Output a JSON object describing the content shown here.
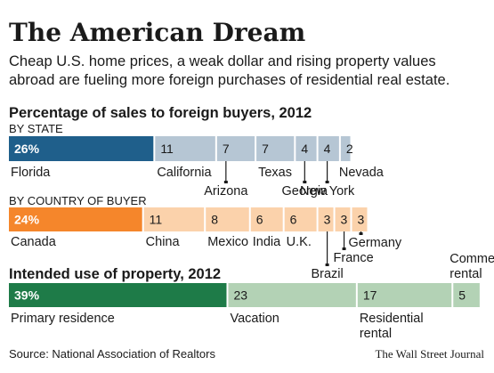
{
  "header": {
    "title": "The American Dream",
    "subtitle_line1": "Cheap U.S. home prices, a weak dollar and rising property values",
    "subtitle_line2": "abroad are fueling more foreign purchases of residential real estate."
  },
  "chart_data": [
    {
      "type": "bar",
      "orientation": "horizontal-stacked",
      "title": "Percentage of sales to foreign buyers, 2012",
      "section_label": "BY STATE",
      "unit": "%",
      "categories": [
        "Florida",
        "California",
        "Arizona",
        "Texas",
        "Georgia",
        "New York",
        "Nevada"
      ],
      "values": [
        26,
        11,
        7,
        7,
        4,
        4,
        2
      ],
      "value_labels": [
        "26%",
        "11",
        "7",
        "7",
        "4",
        "4",
        "2"
      ],
      "colors": {
        "highlight": "#1f5f8b",
        "rest": "#b6c6d4"
      }
    },
    {
      "type": "bar",
      "orientation": "horizontal-stacked",
      "section_label": "BY COUNTRY OF BUYER",
      "unit": "%",
      "categories": [
        "Canada",
        "China",
        "Mexico",
        "India",
        "U.K.",
        "Brazil",
        "France",
        "Germany"
      ],
      "values": [
        24,
        11,
        8,
        6,
        6,
        3,
        3,
        3
      ],
      "value_labels": [
        "24%",
        "11",
        "8",
        "6",
        "6",
        "3",
        "3",
        "3"
      ],
      "colors": {
        "highlight": "#f5862b",
        "rest": "#fbd2ab"
      }
    },
    {
      "type": "bar",
      "orientation": "horizontal-stacked",
      "title": "Intended use of property, 2012",
      "unit": "%",
      "categories": [
        "Primary residence",
        "Vacation",
        "Residential rental",
        "Commercial rental"
      ],
      "values": [
        39,
        23,
        17,
        5
      ],
      "value_labels": [
        "39%",
        "23",
        "17",
        "5"
      ],
      "colors": {
        "highlight": "#1e7b48",
        "rest": "#b3d2b5"
      }
    }
  ],
  "footer": {
    "source": "Source: National Association of Realtors",
    "credit": "The Wall Street Journal"
  }
}
